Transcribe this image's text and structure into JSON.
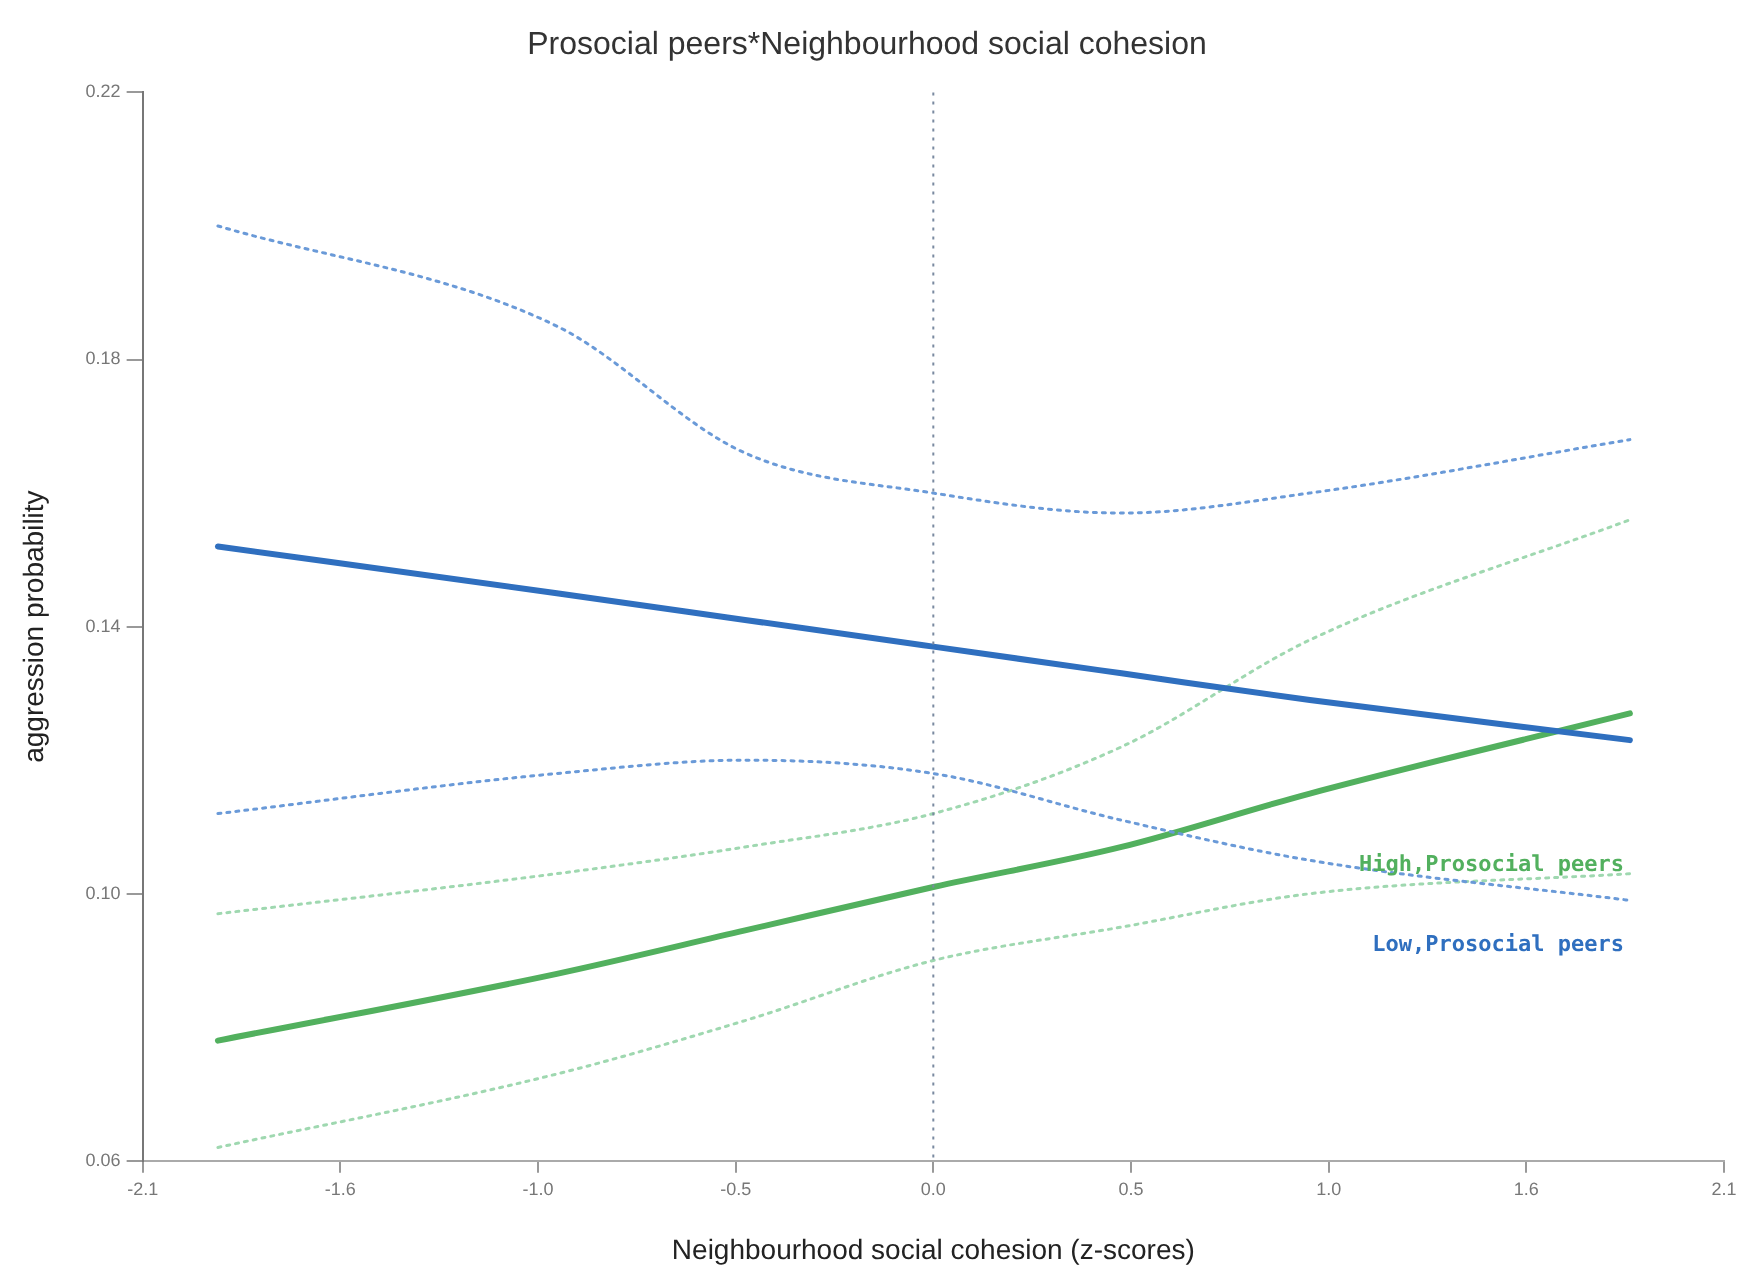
{
  "chart_data": {
    "type": "line",
    "title": "Prosocial peers*Neighbourhood social cohesion",
    "xlabel": "Neighbourhood social cohesion (z-scores)",
    "ylabel": "aggression probability",
    "xlim": [
      -2.1,
      2.1
    ],
    "xticks": [
      -2.1,
      {
        "value": -1.575,
        "label": "-1.6"
      },
      {
        "value": -1.05,
        "label": "-1.0"
      },
      {
        "value": -0.525,
        "label": "-0.5"
      },
      {
        "value": 0,
        "label": "0.0"
      },
      {
        "value": 0.525,
        "label": "0.5"
      },
      {
        "value": 1.05,
        "label": "1.0"
      },
      {
        "value": 1.575,
        "label": "1.6"
      },
      2.1
    ],
    "ylim": [
      0.06,
      0.22
    ],
    "yticks": [
      0.06,
      {
        "value": 0.1,
        "label": "0.10"
      },
      0.14,
      0.18,
      0.22
    ],
    "grid": false,
    "legend": false,
    "marker": "none",
    "ref_lines": [
      {
        "axis": "x",
        "value": 0,
        "color": "#7a8aa0",
        "line_style": "dotted"
      }
    ],
    "series": [
      {
        "color": "#6a9ad8",
        "line_style": "dotted",
        "x": [
          -1.9,
          -1.0,
          -0.5,
          0,
          0.5,
          1.0,
          1.85
        ],
        "values": [
          0.2,
          0.185,
          0.166,
          0.16,
          0.157,
          0.16,
          0.168
        ]
      },
      {
        "name": "Low,Prosocial peers",
        "color": "#2f6fbf",
        "line_style": "solid",
        "x": [
          -1.9,
          -1.0,
          -0.5,
          0,
          0.5,
          1.0,
          1.85
        ],
        "values": [
          0.152,
          0.145,
          0.141,
          0.137,
          0.133,
          0.129,
          0.123
        ]
      },
      {
        "color": "#6a9ad8",
        "line_style": "dotted",
        "x": [
          -1.9,
          -1.0,
          -0.5,
          0,
          0.5,
          1.0,
          1.85
        ],
        "values": [
          0.112,
          0.118,
          0.12,
          0.118,
          0.111,
          0.105,
          0.099
        ]
      },
      {
        "color": "#9fd8b0",
        "line_style": "dotted",
        "x": [
          -1.9,
          -1.0,
          -0.5,
          0,
          0.5,
          1.0,
          1.85
        ],
        "values": [
          0.097,
          0.103,
          0.107,
          0.112,
          0.122,
          0.138,
          0.156
        ]
      },
      {
        "name": "High,Prosocial peers",
        "color": "#52b05e",
        "line_style": "solid",
        "x": [
          -1.9,
          -1.0,
          -0.5,
          0,
          0.5,
          1.0,
          1.85
        ],
        "values": [
          0.078,
          0.088,
          0.0945,
          0.101,
          0.107,
          0.115,
          0.127
        ]
      },
      {
        "color": "#9fd8b0",
        "line_style": "dotted",
        "x": [
          -1.9,
          -1.0,
          -0.5,
          0,
          0.5,
          1.0,
          1.85
        ],
        "values": [
          0.062,
          0.073,
          0.081,
          0.09,
          0.095,
          0.1,
          0.103
        ]
      }
    ]
  }
}
